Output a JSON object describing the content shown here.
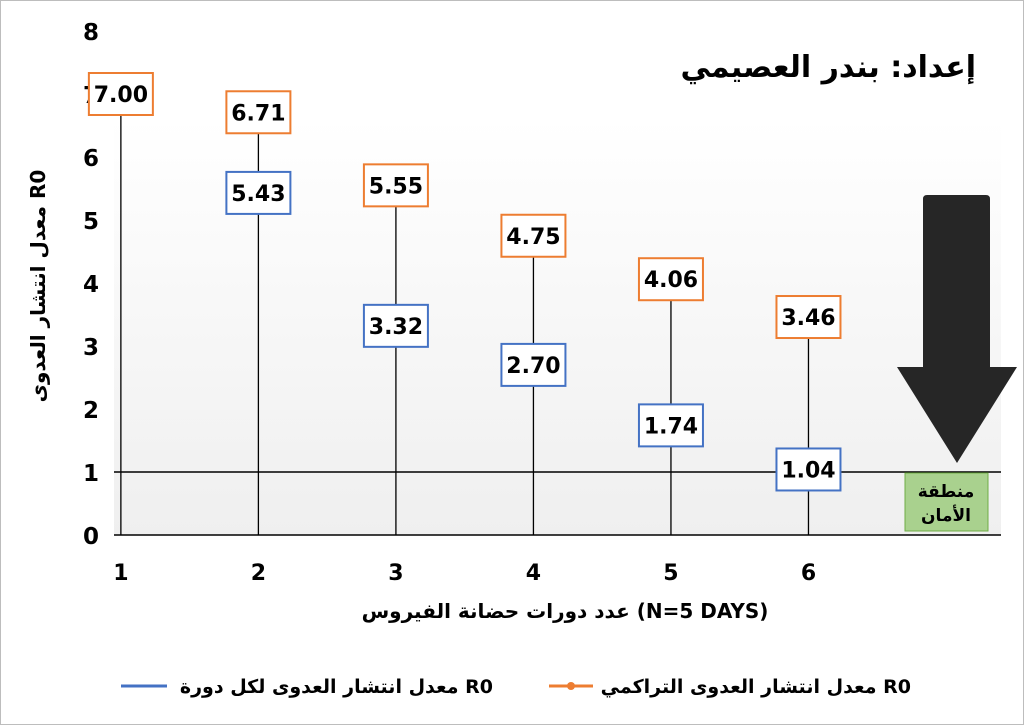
{
  "chart_data": {
    "type": "line",
    "title": "إعداد: بندر العصيمي",
    "xlabel": "عدد دورات حضانة الفيروس (N=5 DAYS)",
    "ylabel": "معدل انتشار العدوى R0",
    "x": [
      1,
      2,
      3,
      4,
      5,
      6
    ],
    "xlim": [
      0.95,
      7.4
    ],
    "ylim": [
      0,
      8
    ],
    "y_ticks": [
      "0",
      "1",
      "2",
      "3",
      "4",
      "5",
      "6",
      "7",
      "8"
    ],
    "x_ticks": [
      "1",
      "2",
      "3",
      "4",
      "5",
      "6"
    ],
    "reference_line": 1,
    "series": [
      {
        "name": "معدل انتشار العدوى التراكمي R0",
        "color": "#ed7d31",
        "values": [
          7.0,
          6.71,
          5.55,
          4.75,
          4.06,
          3.46
        ],
        "labels": [
          "7.00",
          "6.71",
          "5.55",
          "4.75",
          "4.06",
          "3.46"
        ]
      },
      {
        "name": "معدل انتشار العدوى لكل دورة R0",
        "color": "#4472c4",
        "values": [
          null,
          5.43,
          3.32,
          2.7,
          1.74,
          1.04
        ],
        "labels": [
          "",
          "5.43",
          "3.32",
          "2.70",
          "1.74",
          "1.04"
        ]
      }
    ],
    "annotations": {
      "safe_zone_line1": "منطقة",
      "safe_zone_line2": "الأمان",
      "safe_zone_color": "#a9d18e",
      "arrow_color": "#262626"
    },
    "grid": false,
    "legend_position": "bottom"
  }
}
